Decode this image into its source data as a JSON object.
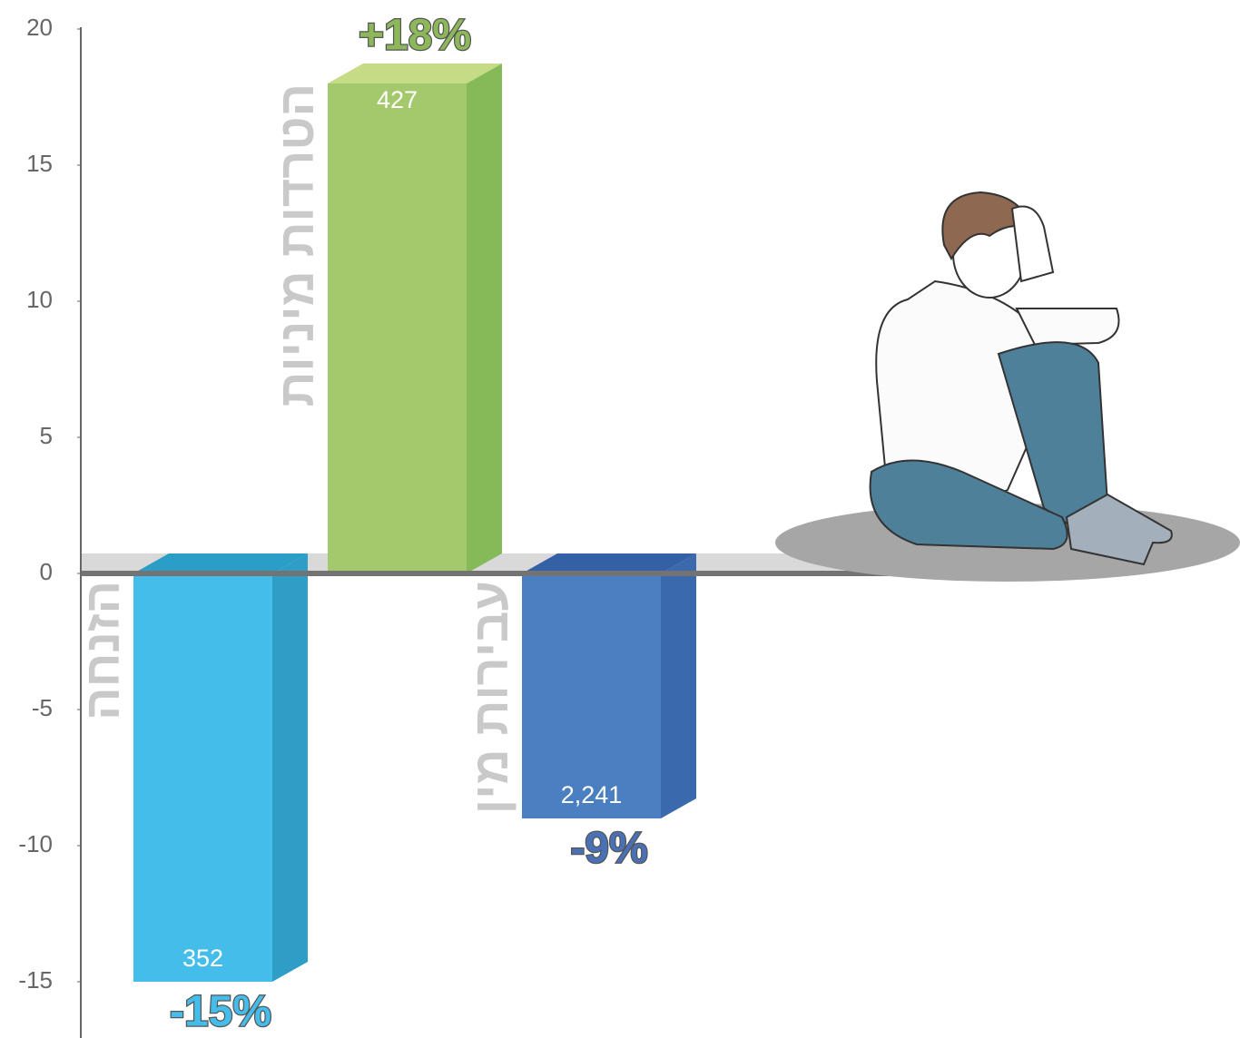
{
  "chart_data": {
    "type": "bar3d",
    "categories": [
      "הזנחה",
      "הטרדות מיניות",
      "עבירות מין"
    ],
    "values": [
      -15,
      18,
      -9
    ],
    "value_labels": [
      "-15%",
      "+18%",
      "-9%"
    ],
    "counts": [
      352,
      427,
      {
        "value": 2241,
        "label": "2,241"
      }
    ],
    "colors": [
      "#45bdea",
      "#a3c96c",
      "#4a7fc1"
    ],
    "side_colors": [
      "#2f9ec6",
      "#86b957",
      "#3a6aad"
    ],
    "top_colors": [
      "#2a9ec7",
      "#c6db85",
      "#3460a6"
    ],
    "label_colors": [
      "#45bdea",
      "#8db85a",
      "#4a70b5"
    ],
    "ylim": [
      -17,
      21
    ],
    "yticks": [
      -15,
      -10,
      -5,
      0,
      5,
      10,
      15,
      20
    ]
  }
}
